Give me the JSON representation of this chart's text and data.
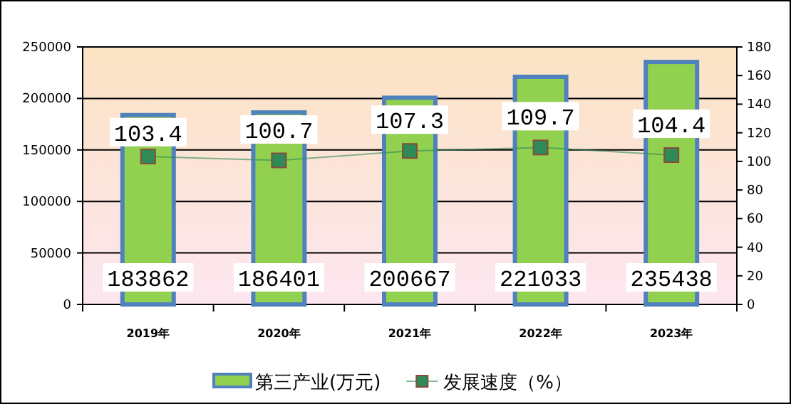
{
  "chart_data": {
    "type": "bar",
    "categories": [
      "2019年",
      "2020年",
      "2021年",
      "2022年",
      "2023年"
    ],
    "series": [
      {
        "name": "第三产业(万元)",
        "color": "#92d050",
        "values": [
          183862,
          186401,
          200667,
          221033,
          235438
        ]
      },
      {
        "name": "发展速度（%）",
        "type": "line",
        "axis": "y2",
        "color": "#2e8b57",
        "marker": "square",
        "values": [
          103.4,
          100.7,
          107.3,
          109.7,
          104.4
        ]
      }
    ],
    "ylim": [
      0,
      250000
    ],
    "yticks": [
      0,
      50000,
      100000,
      150000,
      200000,
      250000
    ],
    "y2lim": [
      0,
      180
    ],
    "y2ticks": [
      0,
      20,
      40,
      60,
      80,
      100,
      120,
      140,
      160,
      180
    ],
    "grid": "y",
    "legend": "bottom",
    "data_labels": true
  }
}
